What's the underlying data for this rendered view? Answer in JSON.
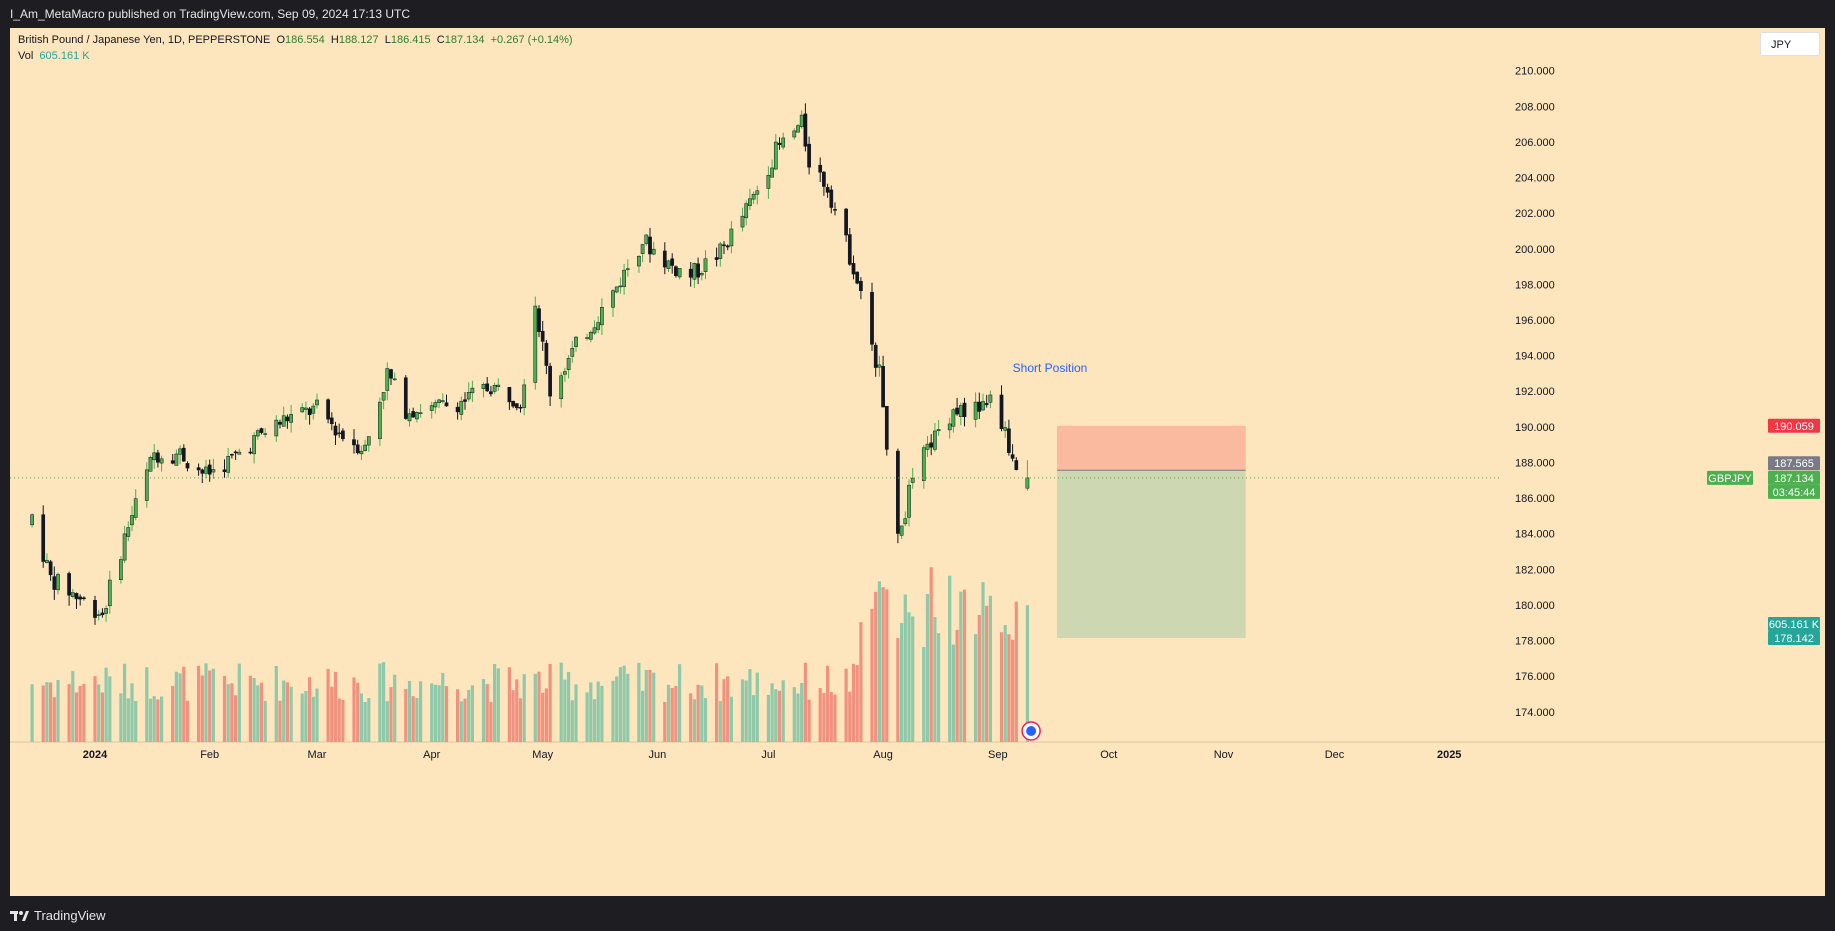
{
  "header": {
    "publisher": "I_Am_MetaMacro published on TradingView.com, Sep 09, 2024 17:13 UTC"
  },
  "footer": {
    "brand": "TradingView"
  },
  "legend": {
    "symbol": "British Pound / Japanese Yen, 1D, PEPPERSTONE",
    "o_label": "O",
    "o": "186.554",
    "h_label": "H",
    "h": "188.127",
    "l_label": "L",
    "l": "186.415",
    "c_label": "C",
    "c": "187.134",
    "change": "+0.267 (+0.14%)",
    "vol_label": "Vol",
    "vol": "605.161 K"
  },
  "currency_button": "JPY",
  "colors": {
    "background": "#fde5bd",
    "up": "#4caf50",
    "down": "#131722",
    "vol_up": "#8fc9a9",
    "vol_down": "#f0927f",
    "stop_zone": "#f8b39a",
    "target_zone": "#c8d6b0"
  },
  "chart_data": {
    "type": "candlestick",
    "symbol": "GBPJPY",
    "interval": "1D",
    "x_tick_labels": [
      "2024",
      "Feb",
      "Mar",
      "Apr",
      "May",
      "Jun",
      "Jul",
      "Aug",
      "Sep",
      "Oct",
      "Nov",
      "Dec",
      "2025"
    ],
    "y_tick_labels": [
      "210.000",
      "208.000",
      "206.000",
      "204.000",
      "202.000",
      "200.000",
      "198.000",
      "196.000",
      "194.000",
      "192.000",
      "190.000",
      "188.000",
      "186.000",
      "184.000",
      "182.000",
      "180.000",
      "178.000",
      "176.000",
      "174.000"
    ],
    "ylim": [
      173.2,
      210.6
    ],
    "keyframes_close": [
      [
        "2023-12-15",
        185.0
      ],
      [
        "2023-12-20",
        181.5
      ],
      [
        "2023-12-27",
        180.5
      ],
      [
        "2024-01-03",
        179.5
      ],
      [
        "2024-01-10",
        184.5
      ],
      [
        "2024-01-17",
        188.5
      ],
      [
        "2024-01-24",
        188.5
      ],
      [
        "2024-01-31",
        187.3
      ],
      [
        "2024-02-07",
        188.2
      ],
      [
        "2024-02-15",
        189.6
      ],
      [
        "2024-02-22",
        190.5
      ],
      [
        "2024-03-01",
        191.0
      ],
      [
        "2024-03-08",
        189.5
      ],
      [
        "2024-03-14",
        188.8
      ],
      [
        "2024-03-20",
        193.0
      ],
      [
        "2024-03-25",
        191.0
      ],
      [
        "2024-04-01",
        191.0
      ],
      [
        "2024-04-10",
        191.5
      ],
      [
        "2024-04-17",
        192.3
      ],
      [
        "2024-04-25",
        191.5
      ],
      [
        "2024-04-29",
        197.0
      ],
      [
        "2024-05-03",
        192.0
      ],
      [
        "2024-05-10",
        194.5
      ],
      [
        "2024-05-20",
        197.5
      ],
      [
        "2024-05-28",
        200.5
      ],
      [
        "2024-06-05",
        199.0
      ],
      [
        "2024-06-10",
        198.5
      ],
      [
        "2024-06-18",
        199.8
      ],
      [
        "2024-06-26",
        202.5
      ],
      [
        "2024-07-03",
        205.5
      ],
      [
        "2024-07-10",
        207.0
      ],
      [
        "2024-07-12",
        205.0
      ],
      [
        "2024-07-17",
        203.5
      ],
      [
        "2024-07-24",
        199.0
      ],
      [
        "2024-07-31",
        193.0
      ],
      [
        "2024-08-05",
        183.5
      ],
      [
        "2024-08-09",
        187.2
      ],
      [
        "2024-08-15",
        189.5
      ],
      [
        "2024-08-20",
        191.0
      ],
      [
        "2024-08-26",
        191.0
      ],
      [
        "2024-08-30",
        191.5
      ],
      [
        "2024-09-02",
        190.3
      ],
      [
        "2024-09-05",
        188.2
      ],
      [
        "2024-09-09",
        187.134
      ]
    ],
    "last_candle": {
      "date": "2024-09-09",
      "open": 186.554,
      "high": 188.127,
      "low": 186.415,
      "close": 187.134
    },
    "current_volume": "605.161 K",
    "price_labels": {
      "symbol_tag": "GBPJPY",
      "last": "187.134",
      "countdown": "03:45:44",
      "stop": "190.059",
      "entry": "187.565",
      "target": "178.142",
      "volume": "605.161 K"
    },
    "short_position": {
      "label": "Short Position",
      "entry": 187.565,
      "stop": 190.059,
      "target": 178.142,
      "start": "2024-09-17",
      "end": "2024-11-07"
    }
  }
}
